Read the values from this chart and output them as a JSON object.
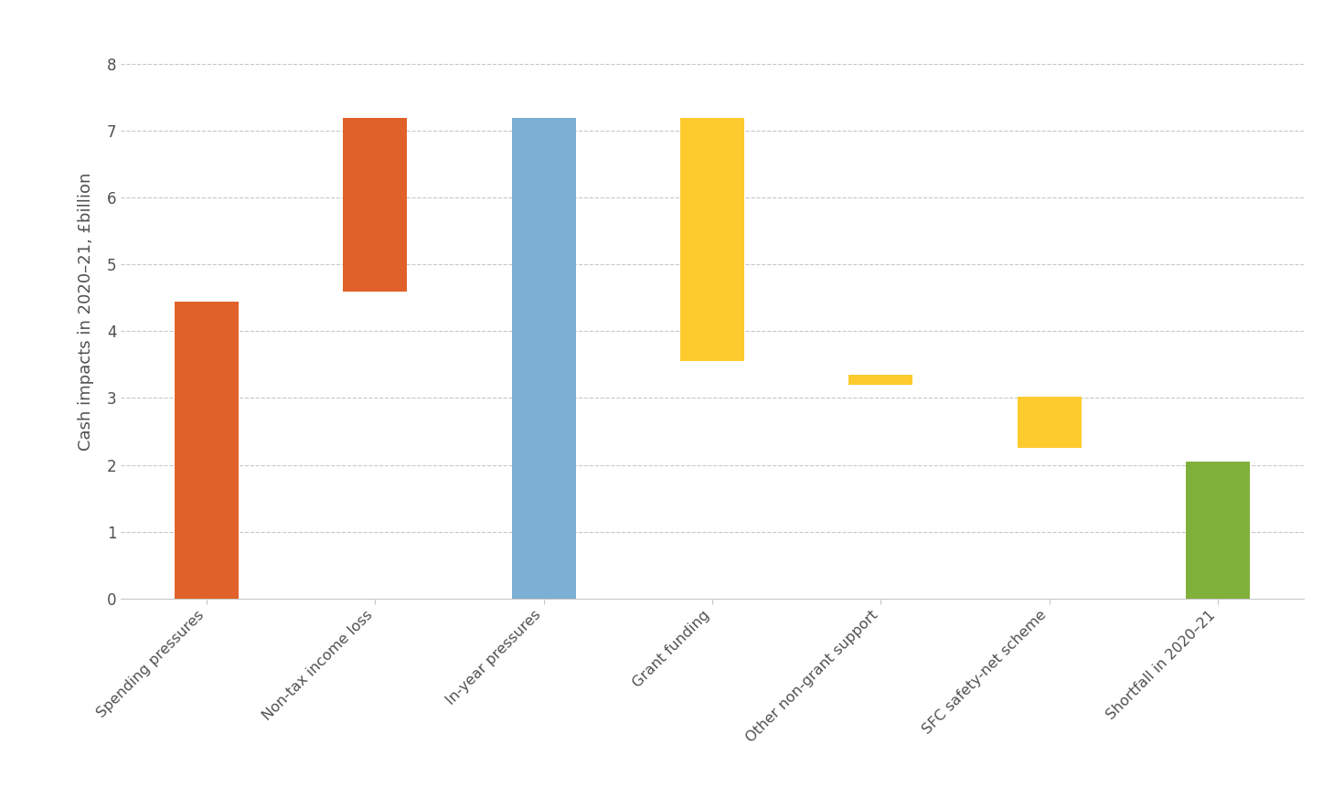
{
  "categories": [
    "Spending pressures",
    "Non-tax income loss",
    "In-year pressures",
    "Grant funding",
    "Other non-grant support",
    "SFC safety-net scheme",
    "Shortfall in 2020–21"
  ],
  "bar_bottoms": [
    0,
    4.6,
    0,
    3.55,
    3.2,
    2.25,
    0
  ],
  "bar_tops": [
    4.45,
    7.2,
    7.2,
    7.2,
    3.35,
    3.02,
    2.05
  ],
  "bar_colors": [
    "#E0622A",
    "#E0622A",
    "#7BAFD4",
    "#FECB2E",
    "#FECB2E",
    "#FECB2E",
    "#7FB03A"
  ],
  "ylabel": "Cash impacts in 2020–21, £billion",
  "ylim": [
    0,
    8.6
  ],
  "yticks": [
    0,
    1,
    2,
    3,
    4,
    5,
    6,
    7,
    8
  ],
  "background_color": "#FFFFFF",
  "grid_color": "#C8C8C8",
  "text_color": "#505050",
  "bar_width": 0.38,
  "ylabel_fontsize": 13,
  "tick_fontsize": 12,
  "xlabel_fontsize": 11.5
}
